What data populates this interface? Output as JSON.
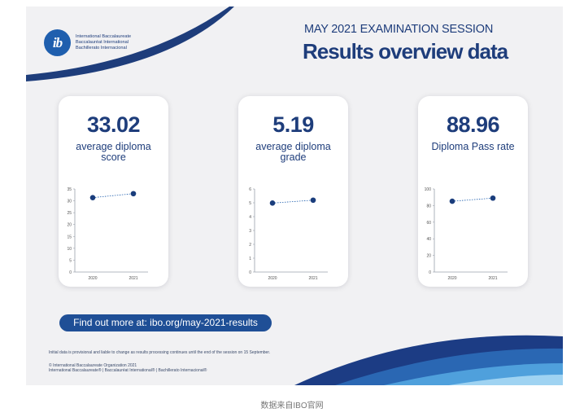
{
  "logo": {
    "mark": "ib",
    "lines": [
      "International Baccalaureate",
      "Baccalauréat International",
      "Bachillerato Internacional"
    ]
  },
  "header": {
    "session": "MAY 2021 EXAMINATION SESSION",
    "title": "Results overview data"
  },
  "cards": [
    {
      "value": "33.02",
      "label": "average diploma score"
    },
    {
      "value": "5.19",
      "label": "average diploma grade"
    },
    {
      "value": "88.96",
      "label": "Diploma Pass rate"
    }
  ],
  "chart_data": [
    {
      "type": "line",
      "title": "",
      "x": [
        "2020",
        "2021"
      ],
      "series": [
        {
          "values": [
            31.34,
            33.02
          ]
        }
      ],
      "ylim": [
        0,
        35
      ],
      "yticks": [
        0,
        5,
        10,
        15,
        20,
        25,
        30,
        35
      ],
      "grid": false
    },
    {
      "type": "line",
      "title": "",
      "x": [
        "2020",
        "2021"
      ],
      "series": [
        {
          "values": [
            4.98,
            5.19
          ]
        }
      ],
      "ylim": [
        0,
        6
      ],
      "yticks": [
        0,
        1,
        2,
        3,
        4,
        5,
        6
      ],
      "grid": false
    },
    {
      "type": "line",
      "title": "",
      "x": [
        "2020",
        "2021"
      ],
      "series": [
        {
          "values": [
            85.2,
            88.96
          ]
        }
      ],
      "ylim": [
        0,
        100
      ],
      "yticks": [
        0,
        20,
        40,
        60,
        80,
        100
      ],
      "grid": false
    }
  ],
  "cta": {
    "label": "Find out more at: ibo.org/may-2021-results"
  },
  "footer": {
    "disclaimer": "Initial data is provisional and liable to change as results processing continues until the end of the session on 15 September.",
    "copyright": "© International Baccalaureate Organization 2021",
    "trademarks": "International Baccalaureate®  |  Baccalauréat International®  |  Bachillerato Internacional®"
  },
  "caption": "数据来自IBO官网",
  "colors": {
    "navy": "#1e3d7b",
    "blue": "#1f5fae",
    "button": "#1f4f96",
    "point": "#1a3d7c"
  }
}
